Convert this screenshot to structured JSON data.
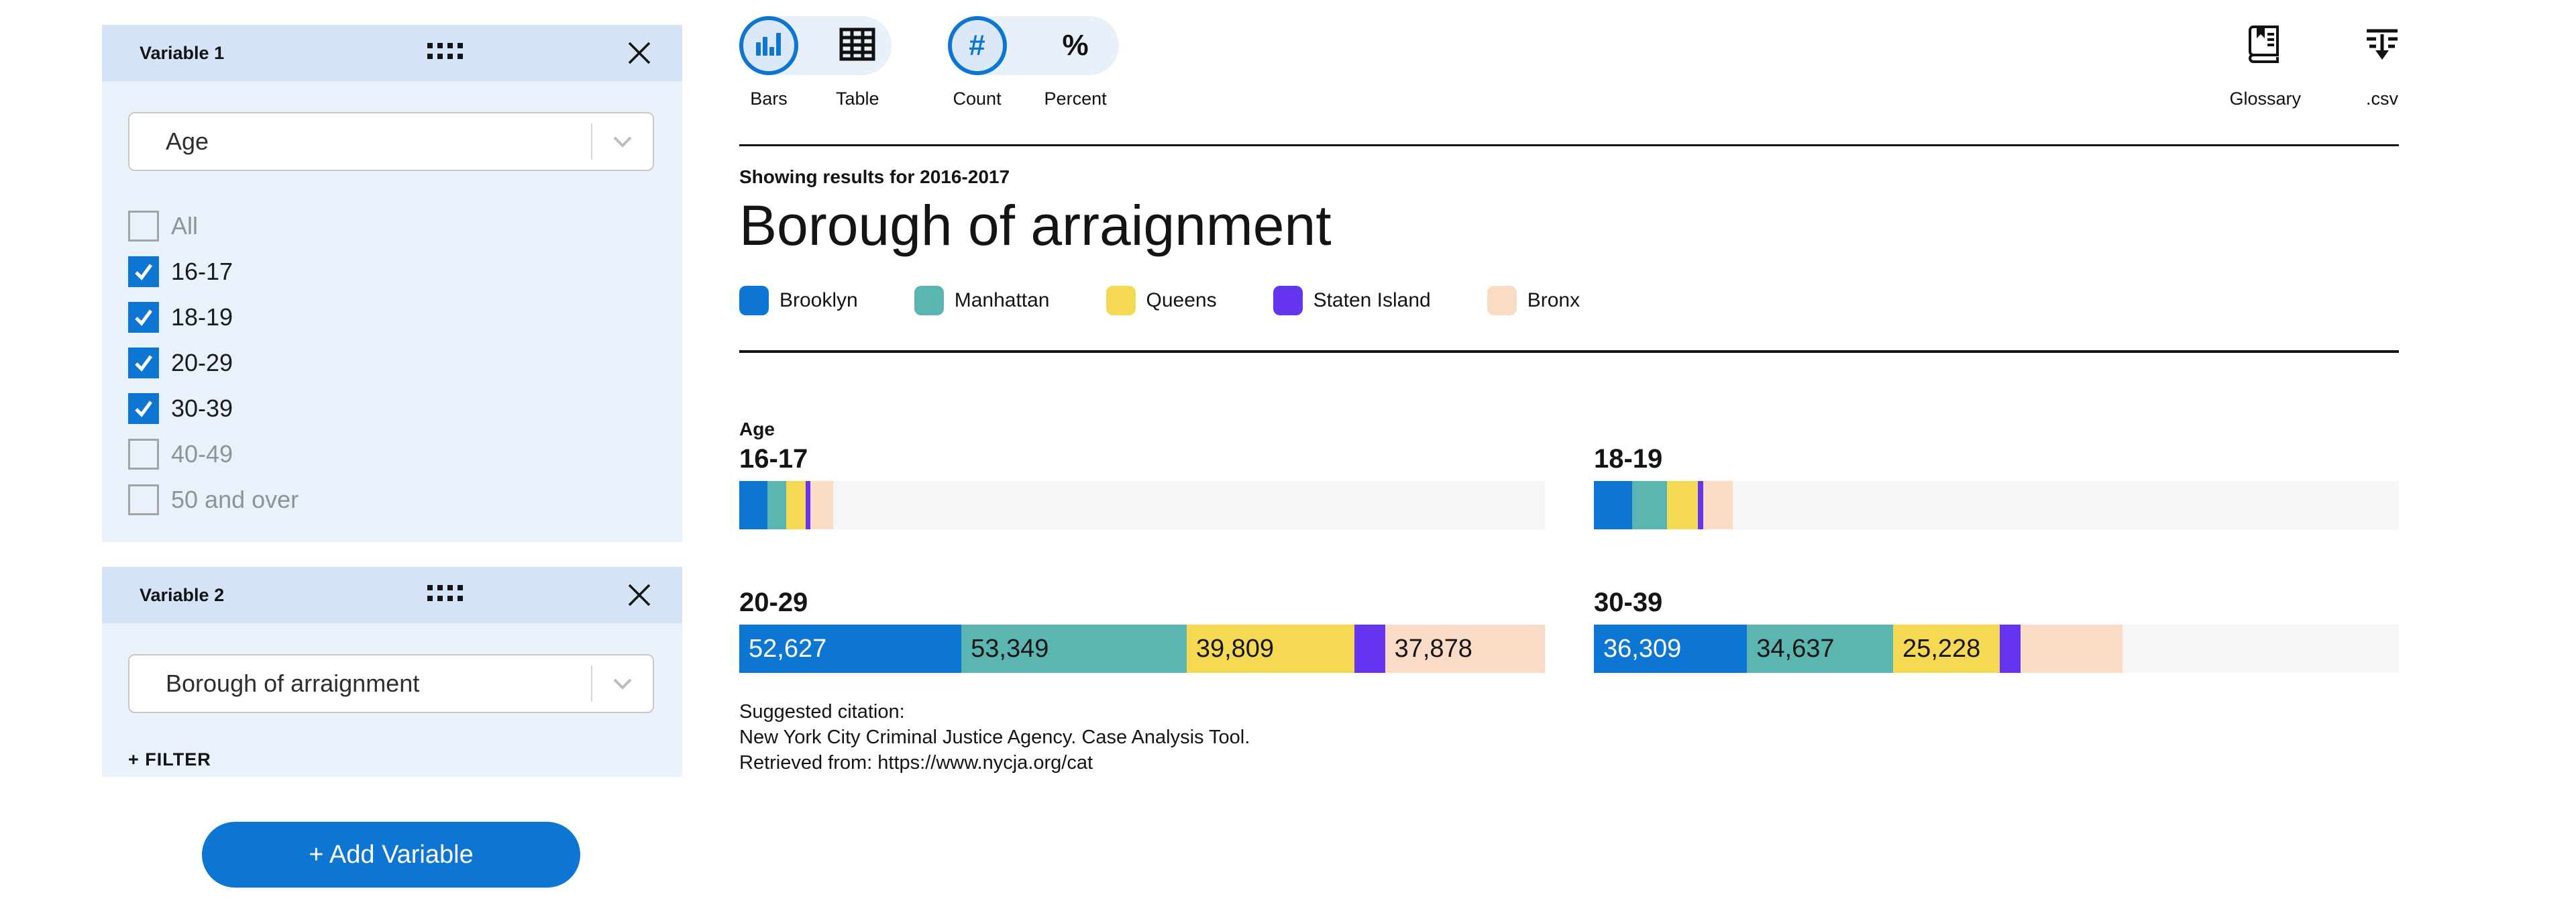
{
  "colors": {
    "accent": "#0d76d2",
    "panel_header": "#d4e3f5",
    "panel_body": "#e9f1fa",
    "toggle_pill": "#e8f0fa",
    "selected_circle_fill": "#dbe8f8",
    "bar_track": "#f6f6f6"
  },
  "sidebar": {
    "panels": [
      {
        "title": "Variable 1",
        "selected": "Age",
        "options": [
          {
            "label": "All",
            "checked": false
          },
          {
            "label": "16-17",
            "checked": true
          },
          {
            "label": "18-19",
            "checked": true
          },
          {
            "label": "20-29",
            "checked": true
          },
          {
            "label": "30-39",
            "checked": true
          },
          {
            "label": "40-49",
            "checked": false
          },
          {
            "label": "50 and over",
            "checked": false
          }
        ]
      },
      {
        "title": "Variable 2",
        "selected": "Borough of arraignment",
        "filter_label": "+ FILTER"
      }
    ],
    "add_variable_label": "+ Add Variable"
  },
  "toolbar": {
    "view_toggle": [
      {
        "label": "Bars",
        "icon": "bar-chart-icon",
        "selected": true
      },
      {
        "label": "Table",
        "icon": "table-icon",
        "selected": false
      }
    ],
    "value_toggle": [
      {
        "label": "Count",
        "icon": "hash-icon",
        "selected": true
      },
      {
        "label": "Percent",
        "icon": "percent-icon",
        "selected": false
      }
    ],
    "actions": [
      {
        "label": "Glossary",
        "icon": "book-icon"
      },
      {
        "label": ".csv",
        "icon": "download-icon"
      }
    ]
  },
  "results": {
    "showing_for": "Showing results for 2016-2017",
    "title": "Borough of arraignment",
    "legend": [
      {
        "label": "Brooklyn",
        "color": "#0d76d2"
      },
      {
        "label": "Manhattan",
        "color": "#5bb6b2"
      },
      {
        "label": "Queens",
        "color": "#f5d952"
      },
      {
        "label": "Staten Island",
        "color": "#6434f1"
      },
      {
        "label": "Bronx",
        "color": "#fadcc6"
      }
    ]
  },
  "chart_data": {
    "type": "bar",
    "subtype": "horizontal-stacked-small-multiples",
    "group_label": "Age",
    "unit": "count",
    "axis_max": 190863,
    "legend_position": "top",
    "series": [
      "Brooklyn",
      "Manhattan",
      "Queens",
      "Staten Island",
      "Bronx"
    ],
    "colors": [
      "#0d76d2",
      "#5bb6b2",
      "#f5d952",
      "#6434f1",
      "#fadcc6"
    ],
    "groups": [
      {
        "label": "16-17",
        "values": [
          6700,
          4500,
          4600,
          1100,
          5300
        ],
        "displays": [
          "",
          "",
          "",
          "",
          ""
        ]
      },
      {
        "label": "18-19",
        "values": [
          9100,
          8300,
          7200,
          1300,
          7000
        ],
        "displays": [
          "",
          "",
          "",
          "",
          ""
        ]
      },
      {
        "label": "20-29",
        "values": [
          52627,
          53349,
          39809,
          7200,
          37878
        ],
        "displays": [
          "52,627",
          "53,349",
          "39,809",
          "",
          "37,878"
        ]
      },
      {
        "label": "30-39",
        "values": [
          36309,
          34637,
          25228,
          5000,
          24200
        ],
        "displays": [
          "36,309",
          "34,637",
          "25,228",
          "",
          ""
        ]
      }
    ]
  },
  "citation": {
    "heading": "Suggested citation:",
    "line2": "New York City Criminal Justice Agency. Case Analysis Tool.",
    "line3": "Retrieved from: https://www.nycja.org/cat"
  }
}
